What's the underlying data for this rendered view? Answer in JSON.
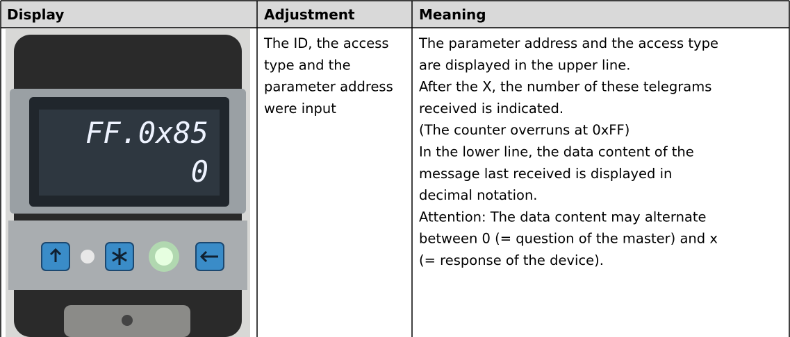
{
  "table": {
    "headers": [
      "Display",
      "Adjustment",
      "Meaning"
    ],
    "display": {
      "lines": [
        "FF.0x85",
        "0"
      ]
    },
    "adjustment": [
      "The ID, the access",
      "type and the",
      "parameter address",
      "were input"
    ],
    "meaning": [
      "The parameter address and the access type",
      "are displayed in the upper line.",
      "After the X, the number of these telegrams",
      "received is indicated.",
      "(The counter overruns at 0xFF)",
      "In the lower line, the data content of the",
      "message last received is displayed in",
      "decimal notation.",
      "Attention: The data content may alternate",
      "between 0 (= question of the master) and x",
      "(= response of the device)."
    ]
  }
}
